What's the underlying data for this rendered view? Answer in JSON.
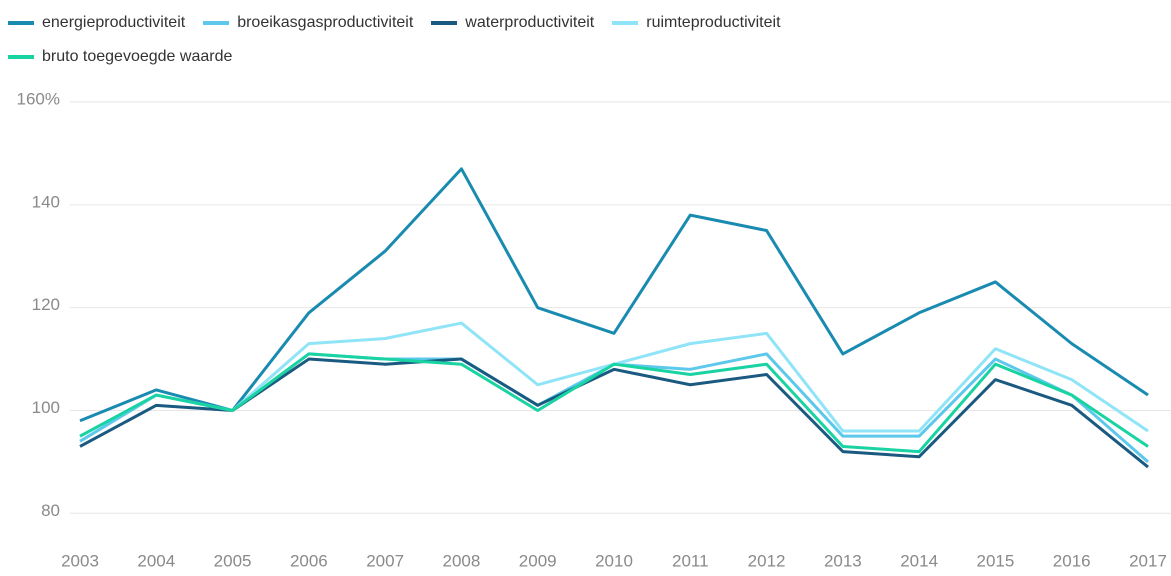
{
  "chart_data": {
    "type": "line",
    "categories": [
      "2003",
      "2004",
      "2005",
      "2006",
      "2007",
      "2008",
      "2009",
      "2010",
      "2011",
      "2012",
      "2013",
      "2014",
      "2015",
      "2016",
      "2017"
    ],
    "series": [
      {
        "name": "energieproductiviteit",
        "color": "#1a8bb0",
        "values": [
          98,
          104,
          100,
          119,
          131,
          147,
          120,
          115,
          138,
          135,
          111,
          119,
          125,
          113,
          103
        ]
      },
      {
        "name": "broeikasgasproductiviteit",
        "color": "#5cc8ec",
        "values": [
          94,
          103,
          100,
          111,
          110,
          110,
          101,
          109,
          108,
          111,
          95,
          95,
          110,
          103,
          90
        ]
      },
      {
        "name": "waterproductiviteit",
        "color": "#1b5a80",
        "values": [
          93,
          101,
          100,
          110,
          109,
          110,
          101,
          108,
          105,
          107,
          92,
          91,
          106,
          101,
          89
        ]
      },
      {
        "name": "ruimteproductiviteit",
        "color": "#8fe4f7",
        "values": [
          95,
          103,
          100,
          113,
          114,
          117,
          105,
          109,
          113,
          115,
          96,
          96,
          112,
          106,
          96
        ]
      },
      {
        "name": "bruto toegevoegde waarde",
        "color": "#19d3a2",
        "values": [
          95,
          103,
          100,
          111,
          110,
          109,
          100,
          109,
          107,
          109,
          93,
          92,
          109,
          103,
          93
        ]
      }
    ],
    "ylim": [
      75,
      160
    ],
    "yticks": [
      80,
      100,
      120,
      140,
      {
        "value": 160,
        "label": "160%"
      }
    ],
    "grid": true
  }
}
